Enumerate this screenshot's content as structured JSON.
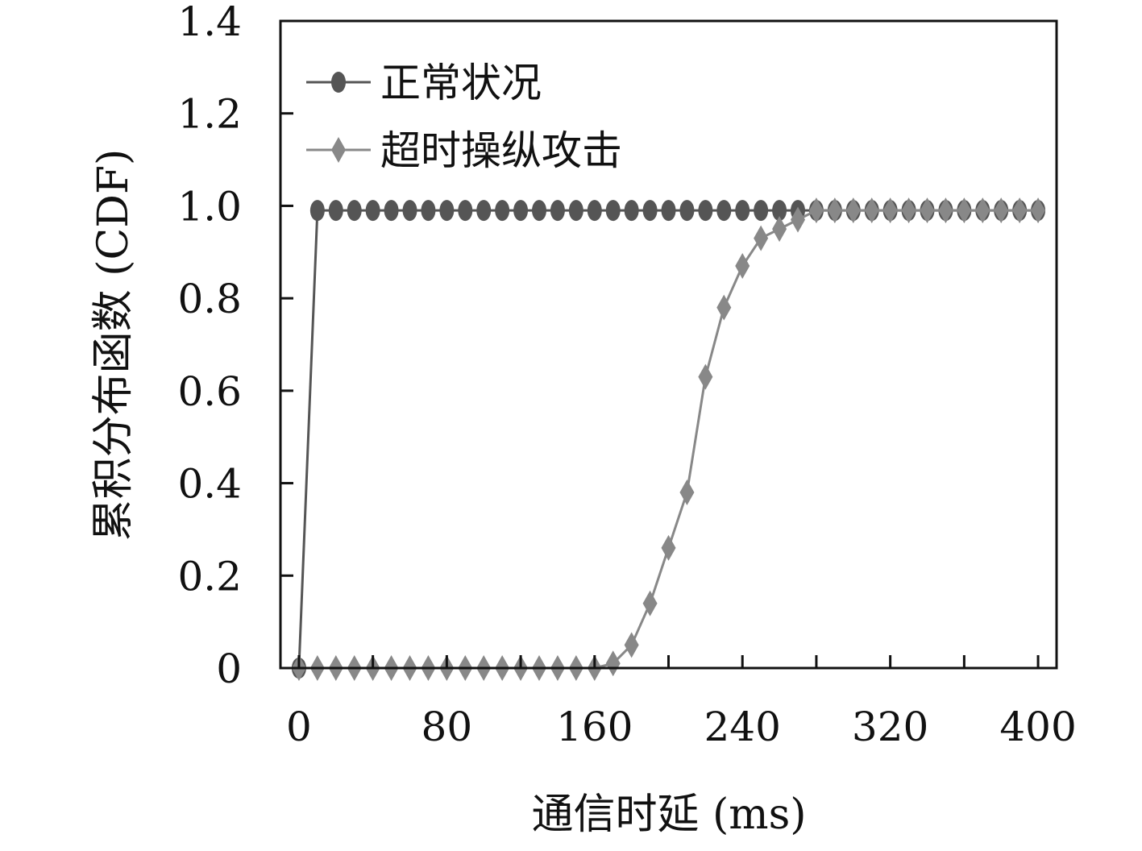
{
  "chart_data": {
    "type": "line",
    "title": "",
    "xlabel": "通信时延 (ms)",
    "ylabel": "累积分布函数 (CDF)",
    "xlim": [
      -10,
      410
    ],
    "ylim": [
      0,
      1.4
    ],
    "xticks": [
      0,
      80,
      160,
      240,
      320,
      400
    ],
    "xtick_labels": [
      "0",
      "80",
      "160",
      "240",
      "320",
      "400"
    ],
    "yticks": [
      0,
      0.2,
      0.4,
      0.6,
      0.8,
      1.0,
      1.2,
      1.4
    ],
    "ytick_labels": [
      "0",
      "0.2",
      "0.4",
      "0.6",
      "0.8",
      "1.0",
      "1.2",
      "1.4"
    ],
    "grid": false,
    "legend_position": "top-left",
    "series": [
      {
        "name": "正常状况",
        "color": "#555555",
        "marker": "circle",
        "x": [
          0,
          10,
          20,
          30,
          40,
          50,
          60,
          70,
          80,
          90,
          100,
          110,
          120,
          130,
          140,
          150,
          160,
          170,
          180,
          190,
          200,
          210,
          220,
          230,
          240,
          250,
          260,
          270,
          280,
          290,
          300,
          310,
          320,
          330,
          340,
          350,
          360,
          370,
          380,
          390,
          400
        ],
        "y": [
          0,
          0.99,
          0.99,
          0.99,
          0.99,
          0.99,
          0.99,
          0.99,
          0.99,
          0.99,
          0.99,
          0.99,
          0.99,
          0.99,
          0.99,
          0.99,
          0.99,
          0.99,
          0.99,
          0.99,
          0.99,
          0.99,
          0.99,
          0.99,
          0.99,
          0.99,
          0.99,
          0.99,
          0.99,
          0.99,
          0.99,
          0.99,
          0.99,
          0.99,
          0.99,
          0.99,
          0.99,
          0.99,
          0.99,
          0.99,
          0.99
        ]
      },
      {
        "name": "超时操纵攻击",
        "color": "#888888",
        "marker": "diamond",
        "x": [
          0,
          10,
          20,
          30,
          40,
          50,
          60,
          70,
          80,
          90,
          100,
          110,
          120,
          130,
          140,
          150,
          160,
          170,
          180,
          190,
          200,
          210,
          220,
          230,
          240,
          250,
          260,
          270,
          280,
          290,
          300,
          310,
          320,
          330,
          340,
          350,
          360,
          370,
          380,
          390,
          400
        ],
        "y": [
          0,
          0,
          0,
          0,
          0,
          0,
          0,
          0,
          0,
          0,
          0,
          0,
          0,
          0,
          0,
          0,
          0,
          0.01,
          0.05,
          0.14,
          0.26,
          0.38,
          0.63,
          0.78,
          0.87,
          0.93,
          0.95,
          0.97,
          0.99,
          0.99,
          0.99,
          0.99,
          0.99,
          0.99,
          0.99,
          0.99,
          0.99,
          0.99,
          0.99,
          0.99,
          0.99
        ]
      }
    ]
  }
}
